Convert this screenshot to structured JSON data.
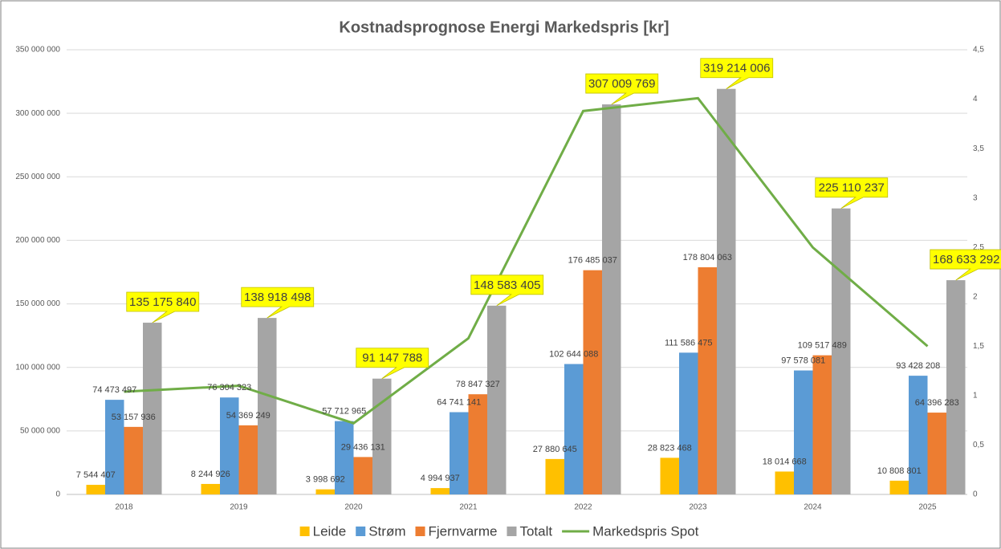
{
  "chart_data": {
    "type": "bar",
    "title": "Kostnadsprognose Energi Markedspris [kr]",
    "categories": [
      "2018",
      "2019",
      "2020",
      "2021",
      "2022",
      "2023",
      "2024",
      "2025"
    ],
    "series": [
      {
        "name": "Leide",
        "color": "#ffc000",
        "values": [
          7544407,
          8244926,
          3998692,
          4994937,
          27880645,
          28823468,
          18014668,
          10808801
        ],
        "value_labels": [
          "7 544 407",
          "8 244 926",
          "3 998 692",
          "4 994 937",
          "27 880 645",
          "28 823 468",
          "18 014 668",
          "10 808 801"
        ]
      },
      {
        "name": "Strøm",
        "color": "#5b9bd5",
        "values": [
          74473497,
          76304323,
          57712965,
          64741141,
          102644088,
          111586475,
          97578081,
          93428208
        ],
        "value_labels": [
          "74 473 497",
          "76 304 323",
          "57 712 965",
          "64 741 141",
          "102 644 088",
          "111 586 475",
          "97 578 081",
          "93 428 208"
        ]
      },
      {
        "name": "Fjernvarme",
        "color": "#ed7d31",
        "values": [
          53157936,
          54369249,
          29436131,
          78847327,
          176485037,
          178804063,
          109517489,
          64396283
        ],
        "value_labels": [
          "53 157 936",
          "54 369 249",
          "29 436 131",
          "78 847 327",
          "176 485 037",
          "178 804 063",
          "109 517 489",
          "64 396 283"
        ]
      },
      {
        "name": "Totalt",
        "color": "#a5a5a5",
        "label_box": "#ffff00",
        "values": [
          135175840,
          138918498,
          91147788,
          148583405,
          307009769,
          319214006,
          225110237,
          168633292
        ],
        "value_labels": [
          "135 175 840",
          "138 918 498",
          "91 147 788",
          "148 583 405",
          "307 009 769",
          "319 214 006",
          "225 110 237",
          "168 633 292"
        ]
      },
      {
        "name": "Markedspris Spot",
        "color": "#70ad47",
        "type": "line",
        "axis": "y2",
        "values": [
          1.04,
          1.1,
          0.72,
          1.58,
          3.88,
          4.01,
          2.5,
          1.5
        ]
      }
    ],
    "ylim": [
      0,
      350000000
    ],
    "yticks": [
      0,
      {
        "value": 50000000,
        "label": "50 000 000"
      },
      {
        "value": 100000000,
        "label": "100 000 000"
      },
      {
        "value": 150000000,
        "label": "150 000 000"
      },
      {
        "value": 200000000,
        "label": "200 000 000"
      },
      {
        "value": 250000000,
        "label": "250 000 000"
      },
      {
        "value": 300000000,
        "label": "300 000 000"
      },
      {
        "value": 350000000,
        "label": "350 000 000"
      }
    ],
    "y2lim": [
      0,
      4.5
    ],
    "y2ticks": [
      0,
      {
        "value": 0.5,
        "label": "0,5"
      },
      1,
      {
        "value": 1.5,
        "label": "1,5"
      },
      2,
      {
        "value": 2.5,
        "label": "2,5"
      },
      3,
      {
        "value": 3.5,
        "label": "3,5"
      },
      4,
      {
        "value": 4.5,
        "label": "4,5"
      }
    ],
    "grid": true,
    "legend": "bottom"
  }
}
